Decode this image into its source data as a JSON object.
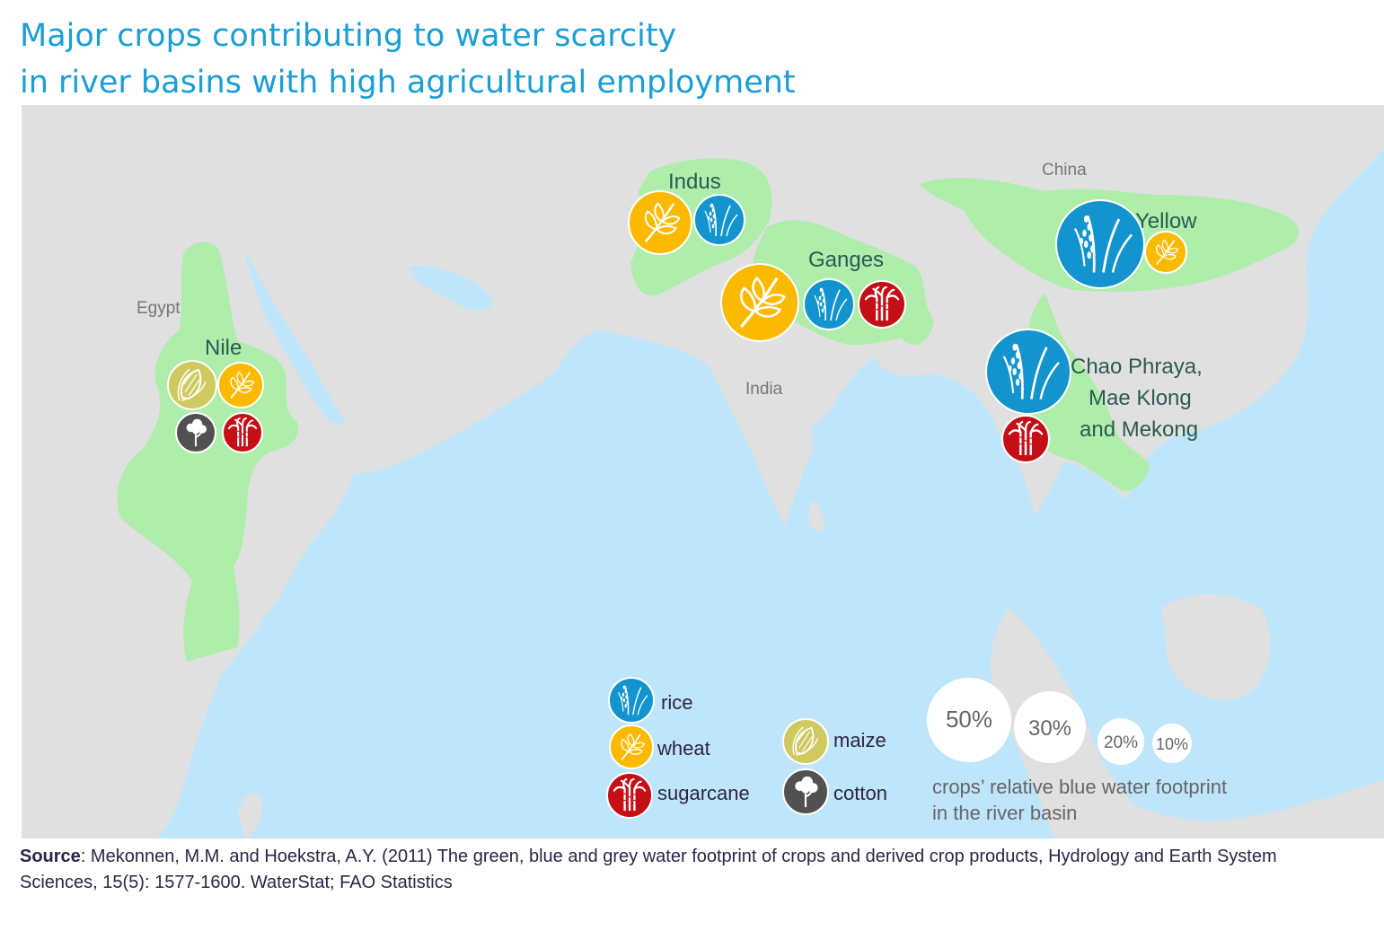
{
  "title": {
    "line1": "Major crops contributing to water scarcity",
    "line2": "in river basins with high agricultural employment"
  },
  "countries": {
    "egypt": "Egypt",
    "india": "India",
    "china": "China"
  },
  "basins": {
    "nile": "Nile",
    "indus": "Indus",
    "ganges": "Ganges",
    "yellow": "Yellow",
    "chao_line1": "Chao Phraya,",
    "chao_line2": "Mae Klong",
    "chao_line3": "and Mekong"
  },
  "basin_crops": [
    {
      "basin": "Nile",
      "crops": [
        "maize",
        "wheat",
        "cotton",
        "sugarcane"
      ]
    },
    {
      "basin": "Indus",
      "crops": [
        "wheat",
        "rice"
      ]
    },
    {
      "basin": "Ganges",
      "crops": [
        "wheat",
        "rice",
        "sugarcane"
      ]
    },
    {
      "basin": "Yellow",
      "crops": [
        "rice",
        "wheat"
      ]
    },
    {
      "basin": "Chao Phraya, Mae Klong and Mekong",
      "crops": [
        "rice",
        "sugarcane"
      ]
    }
  ],
  "legend": {
    "rice": "rice",
    "wheat": "wheat",
    "sugarcane": "sugarcane",
    "maize": "maize",
    "cotton": "cotton",
    "size_50": "50%",
    "size_30": "30%",
    "size_20": "20%",
    "size_10": "10%",
    "size_caption_1": "crops’ relative blue water footprint",
    "size_caption_2": "in the river basin"
  },
  "colors": {
    "title": "#1a9ed4",
    "ocean": "#bfe5fb",
    "land": "#e0e0e0",
    "basin": "#aeedaa",
    "rice": "#1394cf",
    "wheat": "#fbb900",
    "sugarcane": "#c40f16",
    "maize": "#cfc960",
    "cotton": "#515151"
  },
  "source": {
    "label": "Source",
    "text": ": Mekonnen, M.M. and Hoekstra, A.Y. (2011) The green, blue and grey water footprint of crops and derived crop products, Hydrology and Earth System Sciences, 15(5): 1577-1600. WaterStat; FAO Statistics"
  }
}
